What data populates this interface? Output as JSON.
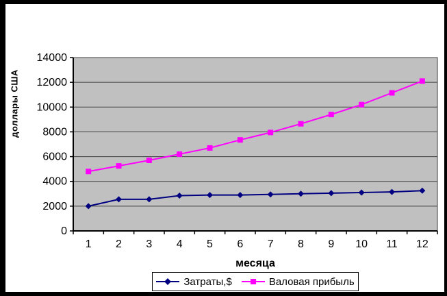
{
  "frame": {
    "background_color": "#ffffff",
    "border_color": "#000000"
  },
  "chart_data": {
    "type": "line",
    "title": "",
    "xlabel": "месяца",
    "ylabel": "доллары США",
    "categories": [
      "1",
      "2",
      "3",
      "4",
      "5",
      "6",
      "7",
      "8",
      "9",
      "10",
      "11",
      "12"
    ],
    "ylim": [
      0,
      14000
    ],
    "ytick_interval": 2000,
    "yticks": [
      0,
      2000,
      4000,
      6000,
      8000,
      10000,
      12000,
      14000
    ],
    "grid": "horizontal-major",
    "plot_background": "#c0c0c0",
    "gridline_color": "#3f3f3f",
    "axis_color": "#000000",
    "legend_position": "bottom-center",
    "series": [
      {
        "name": "Затраты,$",
        "color": "#000080",
        "marker": "diamond",
        "values": [
          2000,
          2550,
          2550,
          2850,
          2900,
          2900,
          2950,
          3000,
          3050,
          3100,
          3150,
          3250
        ]
      },
      {
        "name": "Валовая прибыль",
        "color": "#ff00ff",
        "marker": "square",
        "values": [
          4800,
          5250,
          5700,
          6200,
          6700,
          7350,
          7950,
          8650,
          9400,
          10200,
          11150,
          12100
        ]
      }
    ]
  }
}
